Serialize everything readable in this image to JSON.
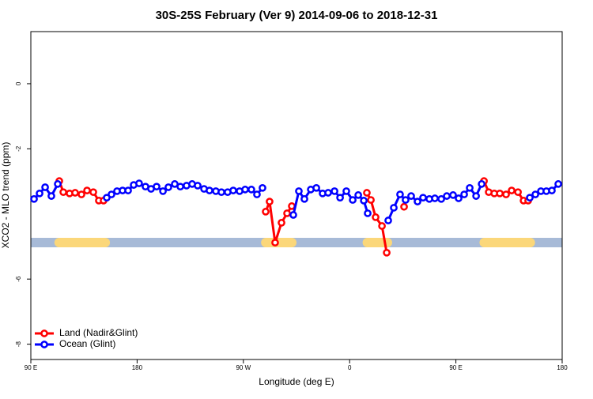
{
  "chart_data": {
    "type": "line",
    "title": "30S-25S February (Ver 9)   2014-09-06 to 2018-12-31",
    "x_label": "Longitude (deg E)",
    "y_label": "XCO2 - MLO trend (ppm)",
    "xlim": [
      90,
      540
    ],
    "xticks": [
      {
        "value": 90,
        "label": "90 E"
      },
      180,
      {
        "value": 270,
        "label": "90 W"
      },
      {
        "value": 360,
        "label": "0"
      },
      {
        "value": 450,
        "label": "90 E"
      },
      180
    ],
    "ylim": [
      -8.47,
      1.6
    ],
    "yticks": [
      0,
      -2,
      -6,
      -8
    ],
    "legend": "bottom-left",
    "band": {
      "value": -4.88,
      "color": "#a7bad7",
      "land_color": "#fbd77a",
      "land": [
        [
          114,
          153
        ],
        [
          289,
          311
        ],
        [
          375,
          392
        ],
        [
          474,
          513
        ]
      ]
    },
    "series": [
      {
        "name": "Land (Nadir&Glint)",
        "color": "#ff0000",
        "x": [
          114.1,
          117.5,
          122.8,
          127.5,
          132.9,
          137.6,
          142.9,
          147.6,
          151.6,
          null,
          288.9,
          292.2,
          296.9,
          302.3,
          307,
          311,
          null,
          374.6,
          378,
          382,
          387.4,
          391.4,
          null,
          406.1,
          null,
          473.8,
          477.8,
          482.5,
          487.2,
          492.5,
          497.2,
          502.6,
          507.3,
          511.2
        ],
        "values": [
          -2.99,
          -3.33,
          -3.37,
          -3.35,
          -3.4,
          -3.28,
          -3.33,
          -3.59,
          -3.59,
          null,
          -3.93,
          -3.62,
          -4.88,
          -4.27,
          -3.98,
          -3.76,
          null,
          -3.35,
          -3.57,
          -4.1,
          -4.37,
          -5.19,
          null,
          -3.78,
          null,
          -2.99,
          -3.33,
          -3.37,
          -3.37,
          -3.4,
          -3.28,
          -3.33,
          -3.59,
          -3.59
        ]
      },
      {
        "name": "Ocean (Glint)",
        "color": "#0000ff",
        "x": [
          92.7,
          97.4,
          102.1,
          107.4,
          112.8,
          null,
          154.3,
          158.3,
          163,
          167.7,
          172.4,
          177.1,
          181.7,
          187.1,
          191.8,
          196.5,
          201.9,
          206.5,
          211.9,
          216.6,
          221.9,
          226.6,
          231.3,
          236.7,
          241.3,
          246.7,
          251.4,
          256.7,
          261.4,
          266.8,
          271.5,
          276.8,
          281.5,
          286.2,
          null,
          312.3,
          317,
          321.7,
          327.1,
          331.8,
          337.1,
          341.8,
          347.2,
          351.9,
          357.2,
          362.6,
          367.3,
          372,
          375.3,
          null,
          392.7,
          397.4,
          402.7,
          407.4,
          412.1,
          417.5,
          422.2,
          427.5,
          432.2,
          437.6,
          442.3,
          447.6,
          452.3,
          457,
          461.7,
          467.1,
          471.8,
          null,
          512.6,
          517.3,
          522,
          526.6,
          531.3,
          536.7
        ],
        "values": [
          -3.54,
          -3.37,
          -3.18,
          -3.45,
          -3.08,
          null,
          -3.5,
          -3.4,
          -3.3,
          -3.28,
          -3.28,
          -3.11,
          -3.06,
          -3.16,
          -3.23,
          -3.16,
          -3.3,
          -3.18,
          -3.08,
          -3.16,
          -3.13,
          -3.08,
          -3.13,
          -3.23,
          -3.28,
          -3.3,
          -3.33,
          -3.33,
          -3.28,
          -3.3,
          -3.25,
          -3.25,
          -3.4,
          -3.2,
          null,
          -4.03,
          -3.3,
          -3.54,
          -3.25,
          -3.2,
          -3.37,
          -3.35,
          -3.3,
          -3.5,
          -3.3,
          -3.57,
          -3.42,
          -3.59,
          -3.98,
          null,
          -4.2,
          -3.81,
          -3.4,
          -3.57,
          -3.45,
          -3.62,
          -3.5,
          -3.54,
          -3.52,
          -3.54,
          -3.45,
          -3.42,
          -3.52,
          -3.4,
          -3.2,
          -3.45,
          -3.08,
          null,
          -3.5,
          -3.4,
          -3.3,
          -3.3,
          -3.28,
          -3.08
        ]
      }
    ]
  }
}
